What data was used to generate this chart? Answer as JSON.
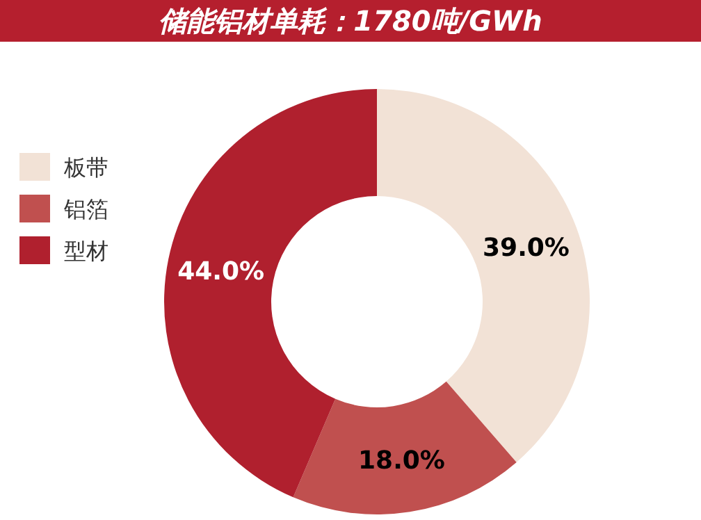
{
  "chart_data": {
    "type": "donut",
    "title": "储能铝材单耗：1780吨/GWh",
    "categories": [
      "板带",
      "铝箔",
      "型材"
    ],
    "values": [
      39.0,
      18.0,
      44.0
    ],
    "value_labels": [
      "39.0%",
      "18.0%",
      "44.0%"
    ],
    "colors": [
      "#f2e2d6",
      "#c0504f",
      "#b0202e"
    ],
    "legend": "left"
  }
}
